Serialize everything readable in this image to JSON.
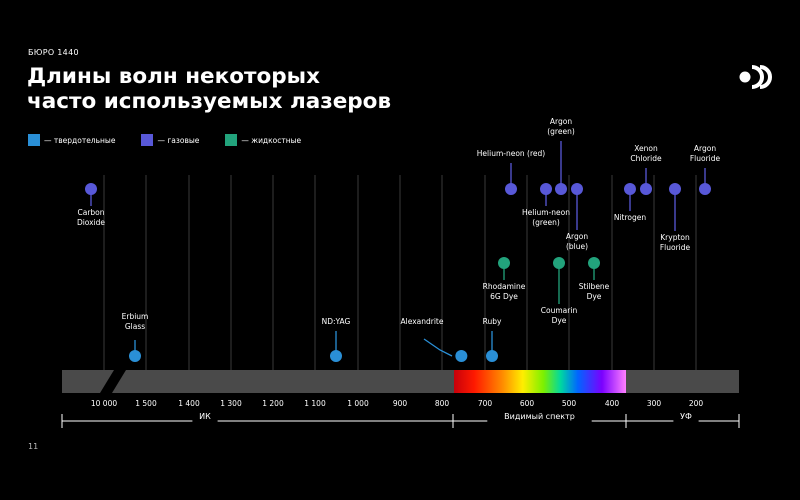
{
  "brand": "БЮРО 1440",
  "title_lines": [
    "Длины волн некоторых",
    "часто используемых лазеров"
  ],
  "page_number": "11",
  "colors": {
    "solid": "#2a8fd6",
    "gas": "#5858d8",
    "liquid": "#22a37c"
  },
  "legend": [
    {
      "type": "solid",
      "label": "— твердотельные"
    },
    {
      "type": "gas",
      "label": "— газовые"
    },
    {
      "type": "liquid",
      "label": "— жидкостные"
    }
  ],
  "chart_data": {
    "type": "scatter",
    "title": "Длины волн некоторых часто используемых лазеров",
    "x_ticks": [
      "10 000",
      "1 500",
      "1 400",
      "1 300",
      "1 200",
      "1 100",
      "1 000",
      "900",
      "800",
      "700",
      "600",
      "500",
      "400",
      "300",
      "200"
    ],
    "regions": [
      {
        "label": "ИК",
        "from": "10 000",
        "to": "780"
      },
      {
        "label": "Видимый спектр",
        "from": "780",
        "to": "380"
      },
      {
        "label": "УФ",
        "from": "380",
        "to": "200"
      }
    ],
    "lasers": [
      {
        "name": "Carbon Dioxide",
        "label_lines": [
          "Carbon",
          "Dioxide"
        ],
        "type": "gas",
        "wavelength_nm": 10600
      },
      {
        "name": "Erbium Glass",
        "label_lines": [
          "Erbium",
          "Glass"
        ],
        "type": "solid",
        "wavelength_nm": 1540
      },
      {
        "name": "ND:YAG",
        "label_lines": [
          "ND:YAG"
        ],
        "type": "solid",
        "wavelength_nm": 1064
      },
      {
        "name": "Alexandrite",
        "label_lines": [
          "Alexandrite"
        ],
        "type": "solid",
        "wavelength_nm": 755
      },
      {
        "name": "Ruby",
        "label_lines": [
          "Ruby"
        ],
        "type": "solid",
        "wavelength_nm": 694
      },
      {
        "name": "Helium-neon (red)",
        "label_lines": [
          "Helium-neon (red)"
        ],
        "type": "gas",
        "wavelength_nm": 633
      },
      {
        "name": "Rhodamine 6G Dye",
        "label_lines": [
          "Rhodamine",
          "6G Dye"
        ],
        "type": "liquid",
        "wavelength_nm": 590
      },
      {
        "name": "Helium-neon (green)",
        "label_lines": [
          "Helium-neon",
          "(green)"
        ],
        "type": "gas",
        "wavelength_nm": 543
      },
      {
        "name": "Argon (green)",
        "label_lines": [
          "Argon",
          "(green)"
        ],
        "type": "gas",
        "wavelength_nm": 514
      },
      {
        "name": "Coumarin Dye",
        "label_lines": [
          "Coumarin",
          "Dye"
        ],
        "type": "liquid",
        "wavelength_nm": 535
      },
      {
        "name": "Argon (blue)",
        "label_lines": [
          "Argon",
          "(blue)"
        ],
        "type": "gas",
        "wavelength_nm": 488
      },
      {
        "name": "Stilbene Dye",
        "label_lines": [
          "Stilbene",
          "Dye"
        ],
        "type": "liquid",
        "wavelength_nm": 420
      },
      {
        "name": "Nitrogen",
        "label_lines": [
          "Nitrogen"
        ],
        "type": "gas",
        "wavelength_nm": 337
      },
      {
        "name": "Xenon Chloride",
        "label_lines": [
          "Xenon",
          "Chloride"
        ],
        "type": "gas",
        "wavelength_nm": 308
      },
      {
        "name": "Krypton Fluoride",
        "label_lines": [
          "Krypton",
          "Fluoride"
        ],
        "type": "gas",
        "wavelength_nm": 248
      },
      {
        "name": "Argon Fluoride",
        "label_lines": [
          "Argon",
          "Fluoride"
        ],
        "type": "gas",
        "wavelength_nm": 193
      }
    ]
  }
}
